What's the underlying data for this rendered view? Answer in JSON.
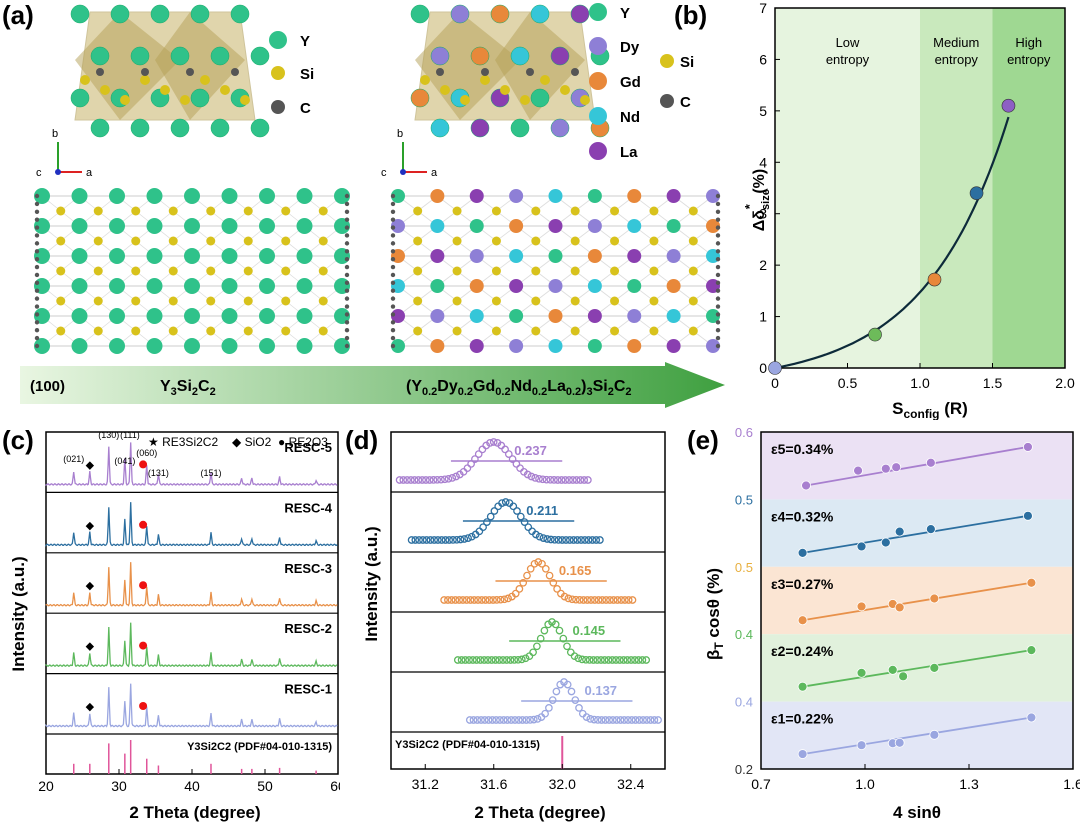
{
  "panels": {
    "a": "(a)",
    "b": "(b)",
    "c": "(c)",
    "d": "(d)",
    "e": "(e)"
  },
  "panel_a": {
    "legend_left": [
      "Y",
      "Si",
      "C"
    ],
    "legend_right_rare_earth": [
      "Y",
      "Dy",
      "Gd",
      "Nd",
      "La"
    ],
    "legend_right_other": [
      "Si",
      "C"
    ],
    "axes": {
      "b": "b",
      "c": "c",
      "a": "a"
    },
    "arrow_left": "(100)",
    "arrow_mid": "Y3Si2C2",
    "arrow_right": "(Y0.2Dy0.2Gd0.2Nd0.2La0.2)3Si2C2",
    "colors": {
      "Y": "#2fc28a",
      "Dy": "#8e7fd6",
      "Gd": "#e8883a",
      "Nd": "#35c6d8",
      "La": "#8a3fb0",
      "Si": "#d8c21c",
      "C": "#555555"
    }
  },
  "chart_data": [
    {
      "type": "line",
      "panel": "b",
      "xlabel": "Sconfig (R)",
      "ylabel": "Δδ*size (%)",
      "xlim": [
        0,
        2.0
      ],
      "ylim": [
        0,
        7
      ],
      "xticks": [
        "0",
        "0.5",
        "1.0",
        "1.5",
        "2.0"
      ],
      "yticks": [
        "0",
        "1",
        "2",
        "3",
        "4",
        "5",
        "6",
        "7"
      ],
      "regions": [
        {
          "label_line1": "Low",
          "label_line2": "entropy",
          "x": [
            0,
            1.0
          ]
        },
        {
          "label_line1": "Medium",
          "label_line2": "entropy",
          "x": [
            1.0,
            1.5
          ]
        },
        {
          "label_line1": "High",
          "label_line2": "entropy",
          "x": [
            1.5,
            2.0
          ]
        }
      ],
      "points": [
        {
          "x": 0,
          "y": 0,
          "color": "#9aa6e0"
        },
        {
          "x": 0.69,
          "y": 0.65,
          "color": "#6dbb5a"
        },
        {
          "x": 1.1,
          "y": 1.72,
          "color": "#e8883a"
        },
        {
          "x": 1.39,
          "y": 3.4,
          "color": "#2c6fa0"
        },
        {
          "x": 1.61,
          "y": 5.1,
          "color": "#8d5fc4"
        }
      ]
    },
    {
      "type": "line",
      "panel": "c",
      "xlabel": "2 Theta (degree)",
      "ylabel": "Intensity (a.u.)",
      "xlim": [
        20,
        60
      ],
      "xticks": [
        "20",
        "30",
        "40",
        "50",
        "60"
      ],
      "legend": [
        "RE3Si2C2",
        "SiO2",
        "RE2O3"
      ],
      "series": [
        {
          "name": "RESC-5",
          "color": "#a87fcf"
        },
        {
          "name": "RESC-4",
          "color": "#2c6fa0"
        },
        {
          "name": "RESC-3",
          "color": "#e8914a"
        },
        {
          "name": "RESC-2",
          "color": "#5cb85c"
        },
        {
          "name": "RESC-1",
          "color": "#9aa6e0"
        }
      ],
      "reference": "Y3Si2C2 (PDF#04-010-1315)",
      "hkl": [
        {
          "label": "(021)",
          "x": 23.8
        },
        {
          "label": "(130)",
          "x": 28.6
        },
        {
          "label": "(111)",
          "x": 31.5
        },
        {
          "label": "(041)",
          "x": 30.8
        },
        {
          "label": "(060)",
          "x": 33.8
        },
        {
          "label": "(131)",
          "x": 35.4
        },
        {
          "label": "(151)",
          "x": 42.6
        }
      ],
      "peaks": [
        23.8,
        26.0,
        28.6,
        30.8,
        31.6,
        33.8,
        35.4,
        42.6,
        46.8,
        48.2,
        52.0,
        57.0
      ]
    },
    {
      "type": "line",
      "panel": "d",
      "xlabel": "2 Theta (degree)",
      "ylabel": "Intensity (a.u.)",
      "xlim": [
        31.0,
        32.6
      ],
      "xticks": [
        "31.2",
        "31.6",
        "32.0",
        "32.4"
      ],
      "reference": "Y3Si2C2 (PDF#04-010-1315)",
      "series": [
        {
          "name": "RESC-5",
          "peak": 31.6,
          "fwhm": "0.237",
          "color": "#a87fcf"
        },
        {
          "name": "RESC-4",
          "peak": 31.67,
          "fwhm": "0.211",
          "color": "#2c6fa0"
        },
        {
          "name": "RESC-3",
          "peak": 31.86,
          "fwhm": "0.165",
          "color": "#e8914a"
        },
        {
          "name": "RESC-2",
          "peak": 31.94,
          "fwhm": "0.145",
          "color": "#5cb85c"
        },
        {
          "name": "RESC-1",
          "peak": 32.01,
          "fwhm": "0.137",
          "color": "#9aa6e0"
        }
      ]
    },
    {
      "type": "scatter",
      "panel": "e",
      "xlabel": "4 sinθ",
      "ylabel": "βT cosθ (%)",
      "xlim": [
        0.7,
        1.6
      ],
      "xticks": [
        "0.7",
        "1.0",
        "1.3",
        "1.6"
      ],
      "yticks_labels": [
        "0.2",
        "0.4",
        "0.4",
        "0.5",
        "0.5",
        "0.6"
      ],
      "series": [
        {
          "name": "ε5=0.34%",
          "color": "#a87fcf",
          "band": "#ebe1f4",
          "x": [
            0.83,
            0.98,
            1.06,
            1.09,
            1.19,
            1.47
          ],
          "y": [
            0.12,
            0.42,
            0.46,
            0.49,
            0.58,
            0.9
          ]
        },
        {
          "name": "ε4=0.32%",
          "color": "#2c6fa0",
          "band": "#dce9f3",
          "x": [
            0.82,
            0.99,
            1.06,
            1.1,
            1.19,
            1.47
          ],
          "y": [
            0.12,
            0.25,
            0.33,
            0.55,
            0.6,
            0.87
          ]
        },
        {
          "name": "ε3=0.27%",
          "color": "#e8914a",
          "band": "#fbe5d3",
          "x": [
            0.82,
            0.99,
            1.08,
            1.1,
            1.2,
            1.48
          ],
          "y": [
            0.12,
            0.4,
            0.45,
            0.38,
            0.56,
            0.88
          ]
        },
        {
          "name": "ε2=0.24%",
          "color": "#5cb85c",
          "band": "#e1f1dc",
          "x": [
            0.82,
            0.99,
            1.08,
            1.11,
            1.2,
            1.48
          ],
          "y": [
            0.14,
            0.42,
            0.48,
            0.35,
            0.52,
            0.88
          ]
        },
        {
          "name": "ε1=0.22%",
          "color": "#9aa6e0",
          "band": "#e2e6f6",
          "x": [
            0.82,
            0.99,
            1.08,
            1.1,
            1.2,
            1.48
          ],
          "y": [
            0.14,
            0.32,
            0.36,
            0.37,
            0.53,
            0.88
          ]
        }
      ]
    }
  ]
}
